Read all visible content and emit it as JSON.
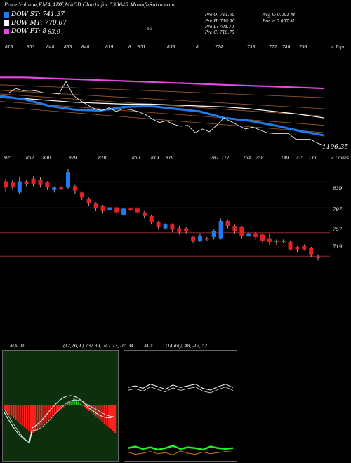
{
  "header": {
    "title": "Price,Volume,EMA,ADX,MACD Charts for 533648 MunafaSutra.com"
  },
  "legend": [
    {
      "label": "DOW ST: 741.37",
      "color": "#1e7cf0"
    },
    {
      "label": "DOW MT: 770.07",
      "color": "#ffffff"
    },
    {
      "label": "DOW PT: 8",
      "color": "#e34ae3",
      "extra": "63.9"
    }
  ],
  "ohlc": {
    "left": [
      "Pre O: 711.60",
      "Pre H: 716.90",
      "Pre L: 704.70",
      "Pre C: 718.70"
    ],
    "right": [
      "Avg V: 0.001 M",
      "Pre V: 0.007 M"
    ]
  },
  "top_marker": "60",
  "volume_axis_label": "« Topo",
  "price_axis_label": "« Lowes",
  "ema_value_label": "1196.35",
  "colors": {
    "ema_blue": "#1e7cf0",
    "ema_pink": "#e34ae3",
    "ema_brown": "#9a5a2a",
    "bull": "#1e7cf0",
    "bear": "#e42020",
    "macd_bg": "#0d2f0d",
    "adx_green": "#22ee22",
    "adx_orange": "#d4721a"
  },
  "top_scale_labels": [
    "818",
    "853",
    "848",
    "853",
    "848",
    "819",
    "8",
    "851",
    "833",
    "8",
    "774",
    "753",
    "772",
    "740",
    "758"
  ],
  "mid_scale_labels": [
    "895",
    "852",
    "830",
    "829",
    "820",
    "850",
    "819",
    "819",
    "782",
    "777",
    "754",
    "758",
    "749",
    "735",
    "735"
  ],
  "price_levels": [
    {
      "label": "839",
      "value": 839
    },
    {
      "label": "797",
      "value": 797
    },
    {
      "label": "757",
      "value": 757
    },
    {
      "label": "719",
      "value": 719
    }
  ],
  "macd": {
    "label": "MACD:",
    "params": "(12,26,9 ) 732.39, 747.73, -15.34"
  },
  "adx": {
    "label": "ADX",
    "params": "(14 day) 48, -12, 52"
  },
  "chart_data": [
    {
      "type": "candlestick",
      "title": "Price",
      "levels": [
        839,
        797,
        757,
        719
      ],
      "candles": [
        {
          "o": 840,
          "c": 830,
          "h": 844,
          "l": 824
        },
        {
          "o": 838,
          "c": 830,
          "h": 842,
          "l": 826
        },
        {
          "o": 822,
          "c": 840,
          "h": 846,
          "l": 820
        },
        {
          "o": 840,
          "c": 835,
          "h": 842,
          "l": 832
        },
        {
          "o": 844,
          "c": 836,
          "h": 848,
          "l": 832
        },
        {
          "o": 842,
          "c": 834,
          "h": 846,
          "l": 830
        },
        {
          "o": 838,
          "c": 830,
          "h": 840,
          "l": 826
        },
        {
          "o": 826,
          "c": 830,
          "h": 832,
          "l": 822
        },
        {
          "o": 830,
          "c": 828,
          "h": 832,
          "l": 826
        },
        {
          "o": 830,
          "c": 855,
          "h": 860,
          "l": 828
        },
        {
          "o": 832,
          "c": 825,
          "h": 834,
          "l": 820
        },
        {
          "o": 822,
          "c": 814,
          "h": 824,
          "l": 810
        },
        {
          "o": 812,
          "c": 804,
          "h": 814,
          "l": 800
        },
        {
          "o": 804,
          "c": 796,
          "h": 806,
          "l": 792
        },
        {
          "o": 800,
          "c": 792,
          "h": 802,
          "l": 788
        },
        {
          "o": 794,
          "c": 798,
          "h": 800,
          "l": 790
        },
        {
          "o": 798,
          "c": 790,
          "h": 800,
          "l": 786
        },
        {
          "o": 786,
          "c": 796,
          "h": 798,
          "l": 784
        },
        {
          "o": 796,
          "c": 794,
          "h": 798,
          "l": 792
        },
        {
          "o": 796,
          "c": 790,
          "h": 798,
          "l": 788
        },
        {
          "o": 790,
          "c": 784,
          "h": 792,
          "l": 780
        },
        {
          "o": 784,
          "c": 774,
          "h": 786,
          "l": 770
        },
        {
          "o": 774,
          "c": 766,
          "h": 776,
          "l": 762
        },
        {
          "o": 764,
          "c": 770,
          "h": 772,
          "l": 762
        },
        {
          "o": 770,
          "c": 762,
          "h": 772,
          "l": 758
        },
        {
          "o": 764,
          "c": 758,
          "h": 768,
          "l": 754
        },
        {
          "o": 764,
          "c": 760,
          "h": 766,
          "l": 756
        },
        {
          "o": 750,
          "c": 744,
          "h": 752,
          "l": 740
        },
        {
          "o": 744,
          "c": 752,
          "h": 756,
          "l": 742
        },
        {
          "o": 748,
          "c": 746,
          "h": 750,
          "l": 744
        },
        {
          "o": 750,
          "c": 760,
          "h": 762,
          "l": 746
        },
        {
          "o": 748,
          "c": 776,
          "h": 780,
          "l": 746
        },
        {
          "o": 776,
          "c": 768,
          "h": 778,
          "l": 764
        },
        {
          "o": 768,
          "c": 760,
          "h": 770,
          "l": 756
        },
        {
          "o": 766,
          "c": 752,
          "h": 768,
          "l": 748
        },
        {
          "o": 752,
          "c": 756,
          "h": 758,
          "l": 750
        },
        {
          "o": 756,
          "c": 750,
          "h": 758,
          "l": 746
        },
        {
          "o": 754,
          "c": 744,
          "h": 756,
          "l": 740
        },
        {
          "o": 748,
          "c": 742,
          "h": 756,
          "l": 738
        },
        {
          "o": 744,
          "c": 742,
          "h": 746,
          "l": 738
        },
        {
          "o": 744,
          "c": 742,
          "h": 746,
          "l": 740
        },
        {
          "o": 742,
          "c": 730,
          "h": 744,
          "l": 728
        },
        {
          "o": 734,
          "c": 730,
          "h": 736,
          "l": 726
        },
        {
          "o": 736,
          "c": 730,
          "h": 738,
          "l": 728
        },
        {
          "o": 732,
          "c": 722,
          "h": 734,
          "l": 718
        },
        {
          "o": 718,
          "c": 716,
          "h": 722,
          "l": 712
        }
      ]
    },
    {
      "type": "line",
      "title": "EMA",
      "series": [
        {
          "name": "DOW PT",
          "color": "#e34ae3",
          "values": [
            1212,
            1212,
            1211,
            1210,
            1209,
            1208,
            1207,
            1206,
            1205,
            1204,
            1203,
            1202,
            1201,
            1200
          ]
        },
        {
          "name": "DOW MT",
          "color": "#ffffff",
          "values": [
            1190,
            1189,
            1187,
            1185,
            1184,
            1183,
            1183,
            1182,
            1181,
            1180,
            1178,
            1175,
            1172,
            1168
          ]
        },
        {
          "name": "DOW ST",
          "color": "#1e7cf0",
          "values": [
            1192,
            1188,
            1181,
            1177,
            1176,
            1180,
            1181,
            1178,
            1175,
            1168,
            1165,
            1160,
            1154,
            1149
          ]
        }
      ]
    },
    {
      "type": "bar",
      "title": "MACD",
      "values": [
        -2,
        -4,
        -5,
        -6,
        -7,
        -8,
        -9,
        -10,
        -11,
        -12,
        -13,
        -14,
        -15,
        -15,
        -14,
        -13,
        -12,
        -11,
        -10,
        -9,
        -8,
        -7,
        -6,
        -5,
        -4,
        -3,
        -2,
        -1,
        0,
        1,
        2,
        3,
        4,
        3,
        2,
        1,
        0,
        -1,
        -2,
        -3,
        -4,
        -5,
        -6,
        -7,
        -8,
        -9,
        -10,
        -11,
        -12,
        -13,
        -14,
        -15
      ]
    },
    {
      "type": "line",
      "title": "ADX",
      "series": [
        {
          "name": "ADX",
          "values": [
            48,
            50,
            47,
            52,
            49,
            46,
            51,
            48,
            50,
            52,
            47,
            45,
            49,
            52,
            48
          ]
        },
        {
          "name": "+DI",
          "values": [
            12,
            14,
            11,
            13,
            10,
            12,
            15,
            11,
            13,
            12,
            10,
            14,
            12,
            11,
            12
          ]
        },
        {
          "name": "-DI",
          "values": [
            52,
            48,
            50,
            53,
            49,
            51,
            47,
            54,
            50,
            48,
            52,
            49,
            51,
            53,
            52
          ]
        }
      ]
    }
  ]
}
